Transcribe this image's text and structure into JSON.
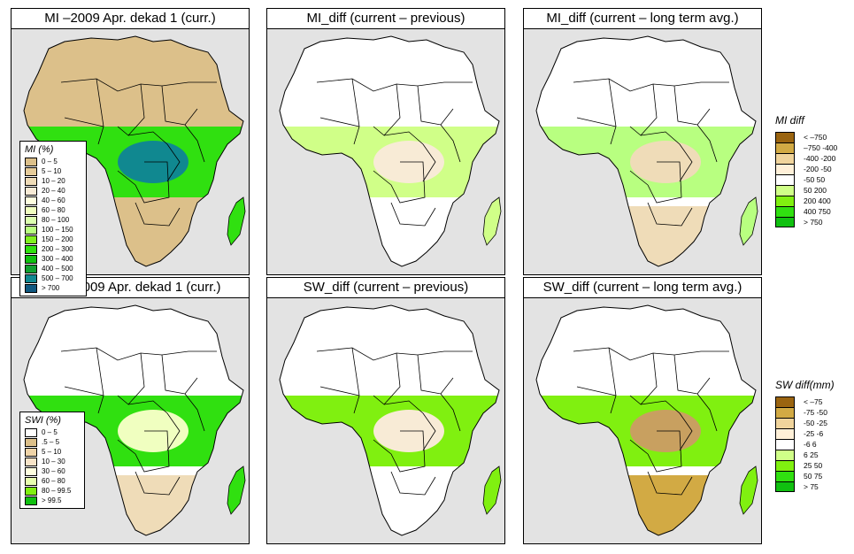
{
  "figure": {
    "panels": [
      {
        "id": "mi-current",
        "title": "MI –2009 Apr. dekad 1 (curr.)",
        "variable": "MI",
        "kind": "current"
      },
      {
        "id": "mi-diff-previous",
        "title": "MI_diff (current – previous)",
        "variable": "MI",
        "kind": "diff-previous"
      },
      {
        "id": "mi-diff-longterm",
        "title": "MI_diff (current – long term avg.)",
        "variable": "MI",
        "kind": "diff-longterm"
      },
      {
        "id": "swi-current",
        "title": "SWI –2009 Apr. dekad 1 (curr.)",
        "variable": "SWI",
        "kind": "current"
      },
      {
        "id": "sw-diff-previous",
        "title": "SW_diff (current – previous)",
        "variable": "SW",
        "kind": "diff-previous"
      },
      {
        "id": "sw-diff-longterm",
        "title": "SW_diff (current – long term avg.)",
        "variable": "SW",
        "kind": "diff-longterm"
      }
    ],
    "legends": {
      "mi": {
        "title": "MI (%)",
        "items": [
          {
            "label": "0 – 5",
            "color": "#dcc08a"
          },
          {
            "label": "5 – 10",
            "color": "#e6cc9a"
          },
          {
            "label": "10 – 20",
            "color": "#efdcb8"
          },
          {
            "label": "20 – 40",
            "color": "#f8ebd6"
          },
          {
            "label": "40 – 60",
            "color": "#ffffe0"
          },
          {
            "label": "60 – 80",
            "color": "#f0ffc0"
          },
          {
            "label": "80 – 100",
            "color": "#dcffb0"
          },
          {
            "label": "100 – 150",
            "color": "#b8ff80"
          },
          {
            "label": "150 – 200",
            "color": "#80f020"
          },
          {
            "label": "200 – 300",
            "color": "#30e010"
          },
          {
            "label": "300 – 400",
            "color": "#10c010"
          },
          {
            "label": "400 – 500",
            "color": "#10a030"
          },
          {
            "label": "500 – 700",
            "color": "#108890"
          },
          {
            "label": "> 700",
            "color": "#105880"
          }
        ]
      },
      "swi": {
        "title": "SWI (%)",
        "items": [
          {
            "label": "0 – 5",
            "color": "#ffffff"
          },
          {
            "label": ".5 – 5",
            "color": "#dcc08a"
          },
          {
            "label": "5 – 10",
            "color": "#efd4a8"
          },
          {
            "label": "10 – 30",
            "color": "#f8e4c8"
          },
          {
            "label": "30 – 60",
            "color": "#ffffe0"
          },
          {
            "label": "60 – 80",
            "color": "#e8ffb0"
          },
          {
            "label": "80 – 99.5",
            "color": "#80f010"
          },
          {
            "label": "> 99.5",
            "color": "#10c010"
          }
        ]
      },
      "mi_diff": {
        "title": "MI diff",
        "items": [
          {
            "label": "< –750",
            "color": "#9a6410"
          },
          {
            "label": "–750 -400",
            "color": "#d2aa44"
          },
          {
            "label": "-400 -200",
            "color": "#f0d49c"
          },
          {
            "label": "-200 -50",
            "color": "#fff0d8"
          },
          {
            "label": "-50 50",
            "color": "#ffffff"
          },
          {
            "label": "50 200",
            "color": "#d0ff88"
          },
          {
            "label": "200 400",
            "color": "#80f010"
          },
          {
            "label": "400 750",
            "color": "#30e010"
          },
          {
            "label": "> 750",
            "color": "#10c010"
          }
        ]
      },
      "sw_diff": {
        "title": "SW diff(mm)",
        "items": [
          {
            "label": "< –75",
            "color": "#9a6410"
          },
          {
            "label": "-75 -50",
            "color": "#d2aa44"
          },
          {
            "label": "-50 -25",
            "color": "#f0d49c"
          },
          {
            "label": "-25 -6",
            "color": "#fff0d8"
          },
          {
            "label": "-6 6",
            "color": "#ffffff"
          },
          {
            "label": "6 25",
            "color": "#d0ff88"
          },
          {
            "label": "25 50",
            "color": "#80f010"
          },
          {
            "label": "50 75",
            "color": "#30e010"
          },
          {
            "label": "> 75",
            "color": "#10c010"
          }
        ]
      }
    },
    "colors": {
      "ocean": "#e3e3e3",
      "desert_nodata": "#e8e8e8",
      "border": "#000000"
    }
  }
}
